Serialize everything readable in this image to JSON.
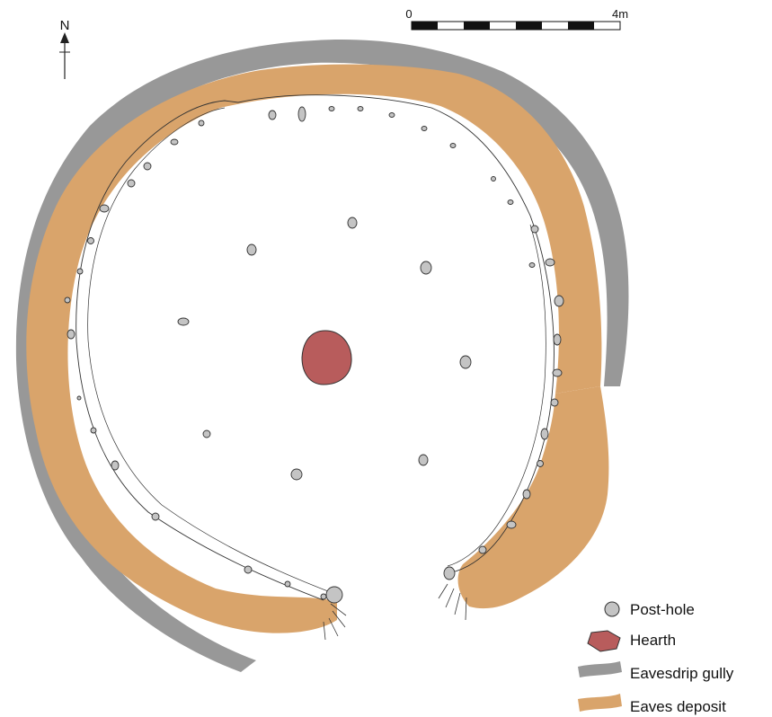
{
  "north": {
    "label": "N"
  },
  "scale_bar": {
    "start_label": "0",
    "end_label": "4m"
  },
  "legend": {
    "items": [
      {
        "key": "post-hole",
        "label": "Post-hole"
      },
      {
        "key": "hearth",
        "label": "Hearth"
      },
      {
        "key": "gully",
        "label": "Eavesdrip gully"
      },
      {
        "key": "deposit",
        "label": "Eaves deposit"
      }
    ]
  },
  "colors": {
    "gully": "#989898",
    "deposit": "#d9a46b",
    "hearth": "#b85c5c",
    "posthole_fill": "#c4c4c4",
    "outline": "#333333"
  }
}
